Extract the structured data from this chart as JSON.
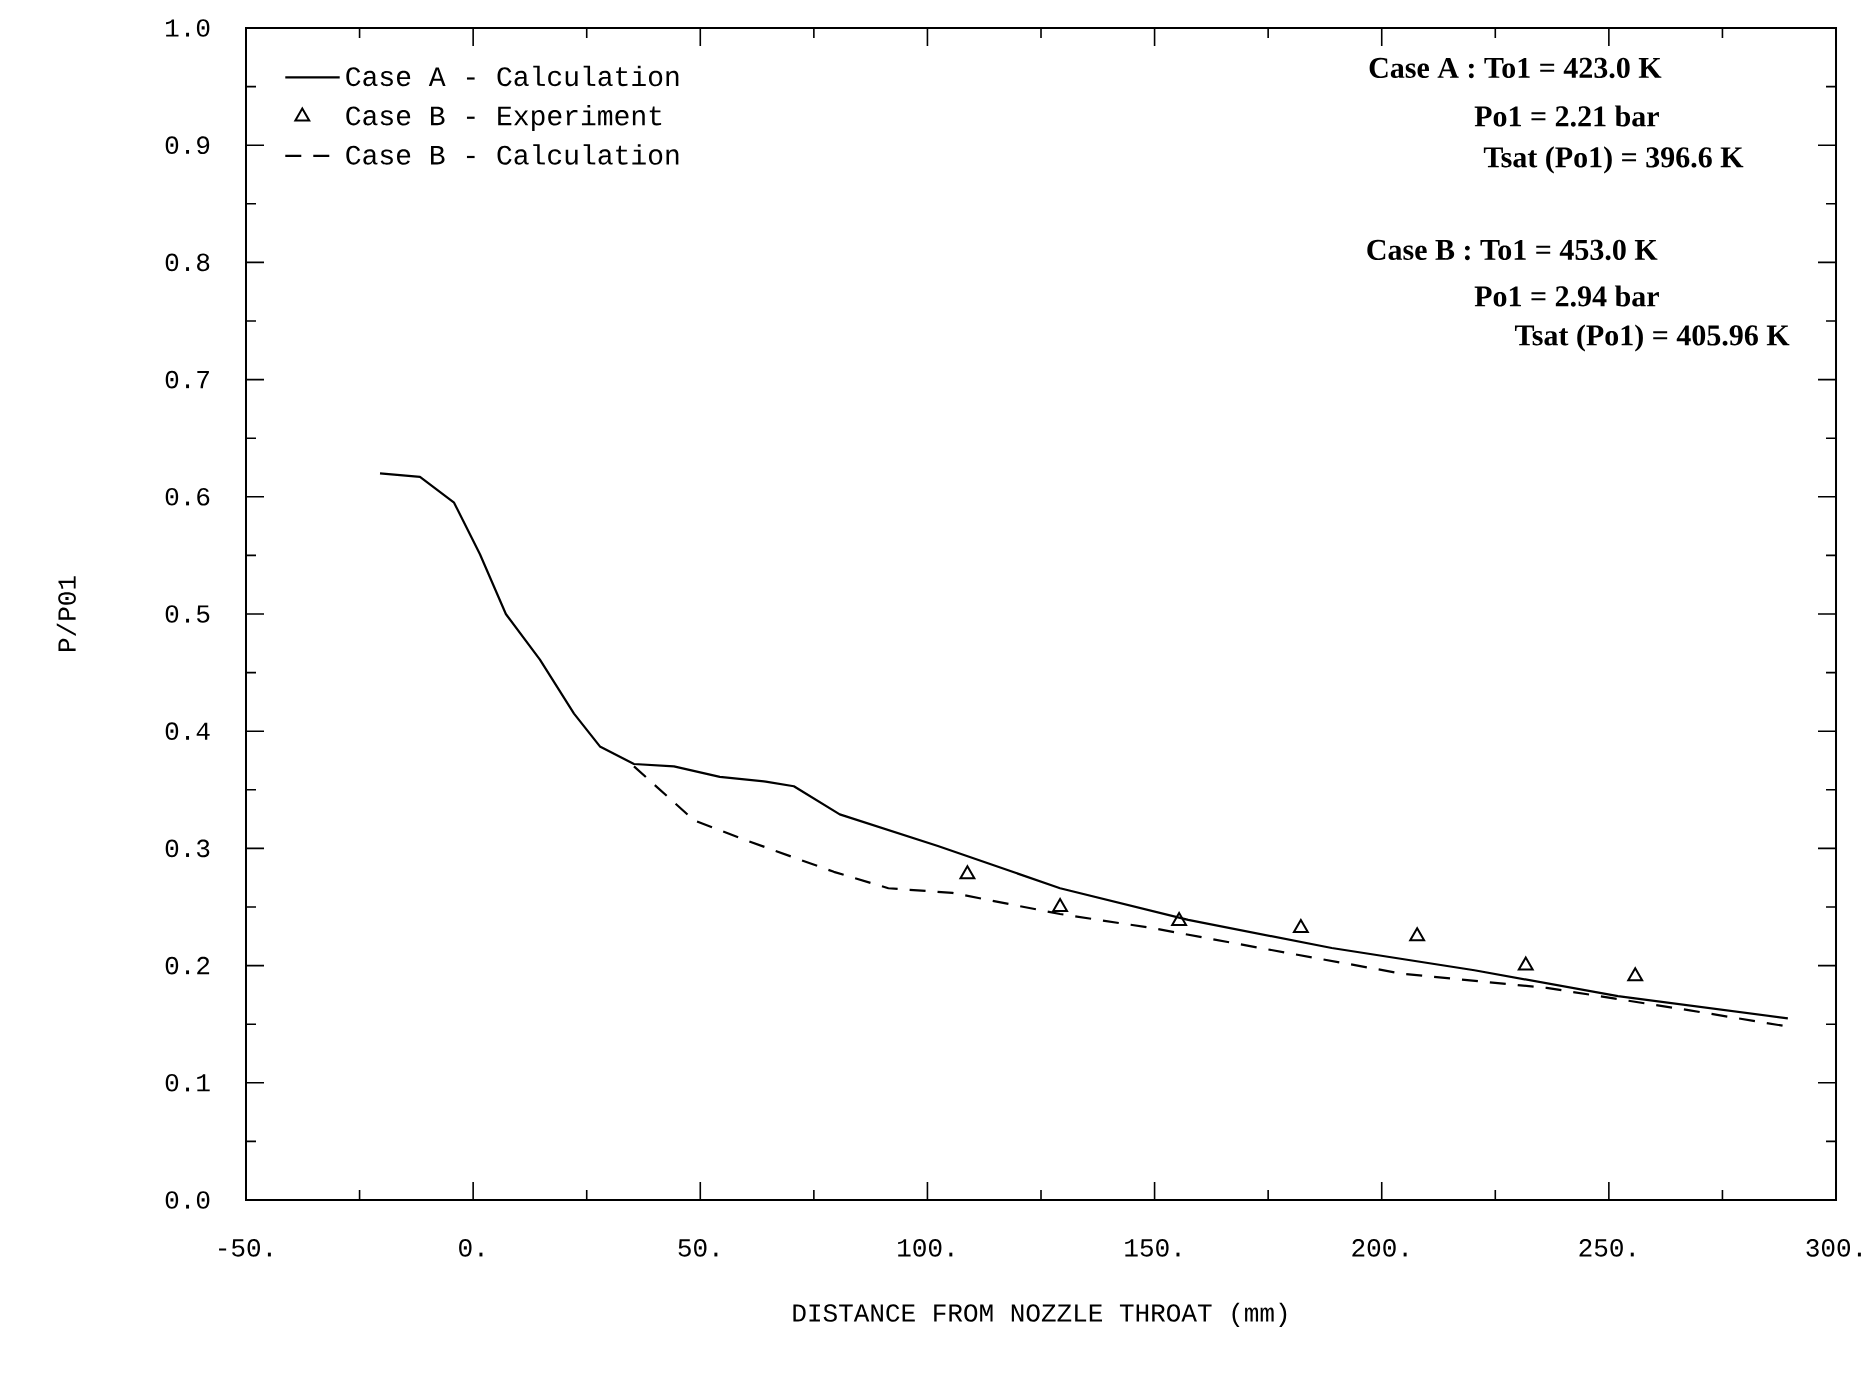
{
  "chart_data": {
    "type": "line",
    "xlabel": "DISTANCE FROM NOZZLE THROAT (mm)",
    "ylabel": "P/P01",
    "xlim": [
      -50,
      300
    ],
    "ylim": [
      0,
      1
    ],
    "xticks": [
      {
        "value": -50,
        "label": "-50."
      },
      {
        "value": 0,
        "label": "0."
      },
      {
        "value": 50,
        "label": "50."
      },
      {
        "value": 100,
        "label": "100."
      },
      {
        "value": 150,
        "label": "150."
      },
      {
        "value": 200,
        "label": "200."
      },
      {
        "value": 250,
        "label": "250."
      },
      {
        "value": 300,
        "label": "300."
      }
    ],
    "yticks": [
      {
        "value": 0,
        "label": "0.0"
      },
      {
        "value": 0.1,
        "label": "0.1"
      },
      {
        "value": 0.2,
        "label": "0.2"
      },
      {
        "value": 0.3,
        "label": "0.3"
      },
      {
        "value": 0.4,
        "label": "0.4"
      },
      {
        "value": 0.5,
        "label": "0.5"
      },
      {
        "value": 0.6,
        "label": "0.6"
      },
      {
        "value": 0.7,
        "label": "0.7"
      },
      {
        "value": 0.8,
        "label": "0.8"
      },
      {
        "value": 0.9,
        "label": "0.9"
      },
      {
        "value": 1,
        "label": "1.0"
      }
    ],
    "legend": "top left",
    "series": [
      {
        "name": "Case A - Calculation",
        "line_style": "solid",
        "color": "#000000",
        "x": [
          -20.5,
          -11.7,
          -4.2,
          1.5,
          7.2,
          14.7,
          22.2,
          27.9,
          35.4,
          44.2,
          54.3,
          64.4,
          70.6,
          80.7,
          102.3,
          129.2,
          157.4,
          189,
          220.4,
          252,
          289.4
        ],
        "values": [
          0.62,
          0.617,
          0.595,
          0.551,
          0.5,
          0.461,
          0.415,
          0.387,
          0.372,
          0.37,
          0.361,
          0.357,
          0.353,
          0.329,
          0.302,
          0.266,
          0.239,
          0.215,
          0.196,
          0.174,
          0.155
        ]
      },
      {
        "name": "Case B - Experiment",
        "type": "scatter",
        "marker": "triangle",
        "color": "#000000",
        "x": [
          108.8,
          129.2,
          155.4,
          182.2,
          207.8,
          231.7,
          255.8
        ],
        "values": [
          0.278,
          0.25,
          0.238,
          0.232,
          0.225,
          0.2,
          0.191
        ]
      },
      {
        "name": "Case B - Calculation",
        "line_style": "dashed",
        "color": "#000000",
        "x": [
          35.4,
          48.6,
          60,
          79.4,
          91.4,
          105.5,
          129.2,
          149.5,
          173.3,
          204.6,
          236.3,
          267.5,
          289.4
        ],
        "values": [
          0.37,
          0.324,
          0.307,
          0.28,
          0.266,
          0.262,
          0.244,
          0.232,
          0.215,
          0.193,
          0.181,
          0.162,
          0.148
        ]
      }
    ],
    "annotations": [
      "Case A : To1 = 423.0 K",
      "Po1 = 2.21 bar",
      "Tsat (Po1) = 396.6 K",
      "Case B : To1 = 453.0 K",
      "Po1 = 2.94 bar",
      "Tsat (Po1) = 405.96 K"
    ]
  }
}
